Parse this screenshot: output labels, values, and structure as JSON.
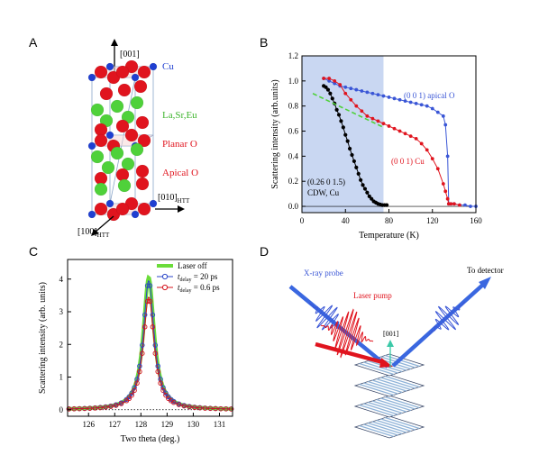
{
  "panels": {
    "A": {
      "letter": "A",
      "axis_001": "[001]",
      "axis_010": "[010]",
      "axis_010_sub": "HTT",
      "axis_100": "[100]",
      "axis_100_sub": "HTT",
      "labels": {
        "cu": "Cu",
        "la": "La,Sr,Eu",
        "planar": "Planar O",
        "apical": "Apical O"
      },
      "colors": {
        "cu": "#1f3fd1",
        "la": "#4fd13a",
        "oxygen": "#e0141e"
      }
    },
    "B": {
      "letter": "B"
    },
    "C": {
      "letter": "C"
    },
    "D": {
      "letter": "D",
      "xray": "X-ray probe",
      "laser": "Laser pump",
      "detector": "To detector",
      "axis": "[001]"
    }
  },
  "chart_data": [
    {
      "id": "B",
      "type": "line",
      "xlabel": "Temperature (K)",
      "ylabel": "Scattering intensity (arb.units)",
      "xlim": [
        0,
        160
      ],
      "ylim": [
        -0.05,
        1.2
      ],
      "xticks": [
        "0",
        "40",
        "80",
        "120",
        "160"
      ],
      "yticks": [
        "0.0",
        "0.2",
        "0.4",
        "0.6",
        "0.8",
        "1.0",
        "1.2"
      ],
      "shade_x": [
        0,
        75
      ],
      "annotations": {
        "apical": "(0 0 1) apical O",
        "cu": "(0 0 1) Cu",
        "cdw_line1": "(0.26 0 1.5)",
        "cdw_line2": "CDW, Cu"
      },
      "series": [
        {
          "key": "apical",
          "color": "#3a56d6",
          "x": [
            20,
            25,
            30,
            35,
            40,
            45,
            50,
            55,
            60,
            65,
            70,
            75,
            80,
            85,
            90,
            95,
            100,
            105,
            110,
            115,
            120,
            125,
            130,
            132,
            134,
            135,
            137,
            140,
            145,
            150,
            155,
            160
          ],
          "y": [
            1.02,
            1.0,
            0.98,
            0.96,
            0.95,
            0.94,
            0.93,
            0.92,
            0.91,
            0.9,
            0.89,
            0.88,
            0.87,
            0.86,
            0.85,
            0.84,
            0.83,
            0.82,
            0.81,
            0.8,
            0.78,
            0.75,
            0.72,
            0.65,
            0.4,
            0.02,
            0.02,
            0.02,
            0.01,
            0.01,
            0.0,
            0.0
          ]
        },
        {
          "key": "cu",
          "color": "#e0141e",
          "x": [
            20,
            25,
            30,
            35,
            40,
            45,
            50,
            55,
            60,
            65,
            70,
            75,
            80,
            85,
            90,
            95,
            100,
            105,
            110,
            115,
            120,
            125,
            130,
            132,
            134,
            135,
            137,
            140,
            145
          ],
          "y": [
            1.02,
            1.02,
            1.0,
            0.97,
            0.9,
            0.85,
            0.8,
            0.76,
            0.72,
            0.7,
            0.68,
            0.66,
            0.64,
            0.62,
            0.6,
            0.58,
            0.56,
            0.54,
            0.5,
            0.45,
            0.38,
            0.3,
            0.18,
            0.12,
            0.06,
            0.02,
            0.02,
            0.02,
            0.01
          ]
        },
        {
          "key": "cdw",
          "color": "#000000",
          "x": [
            20,
            22,
            24,
            26,
            28,
            30,
            32,
            34,
            36,
            38,
            40,
            42,
            44,
            46,
            48,
            50,
            52,
            54,
            56,
            58,
            60,
            62,
            64,
            66,
            68,
            70,
            72,
            74,
            76,
            78
          ],
          "y": [
            0.96,
            0.95,
            0.93,
            0.9,
            0.86,
            0.82,
            0.77,
            0.73,
            0.68,
            0.63,
            0.57,
            0.52,
            0.46,
            0.41,
            0.36,
            0.31,
            0.26,
            0.21,
            0.17,
            0.14,
            0.11,
            0.08,
            0.06,
            0.04,
            0.03,
            0.02,
            0.015,
            0.01,
            0.01,
            0.01
          ]
        },
        {
          "key": "fit",
          "color": "#4fd13a",
          "dashed": true,
          "x": [
            10,
            75
          ],
          "y": [
            0.9,
            0.63
          ]
        }
      ]
    },
    {
      "id": "C",
      "type": "line",
      "xlabel": "Two theta (deg.)",
      "ylabel": "Scattering intensity (arb. units)",
      "xlim": [
        125.2,
        131.5
      ],
      "ylim": [
        -0.2,
        4.6
      ],
      "xticks": [
        "126",
        "127",
        "128",
        "129",
        "130",
        "131"
      ],
      "yticks": [
        "0",
        "1",
        "2",
        "3",
        "4"
      ],
      "legend": {
        "laser_off": "Laser off",
        "t1_sub": "delay",
        "t1_val": "= 20 ps",
        "t2_sub": "delay",
        "t2_val": "= 0.6 ps"
      },
      "peak_center": 128.3,
      "peak_width": 0.25,
      "series": [
        {
          "key": "laser_off",
          "color": "#6bdc3a",
          "amplitude": 4.05
        },
        {
          "key": "t20",
          "color": "#2b46c8",
          "amplitude": 3.95
        },
        {
          "key": "t06",
          "color": "#d4141e",
          "amplitude": 3.45
        }
      ]
    }
  ]
}
